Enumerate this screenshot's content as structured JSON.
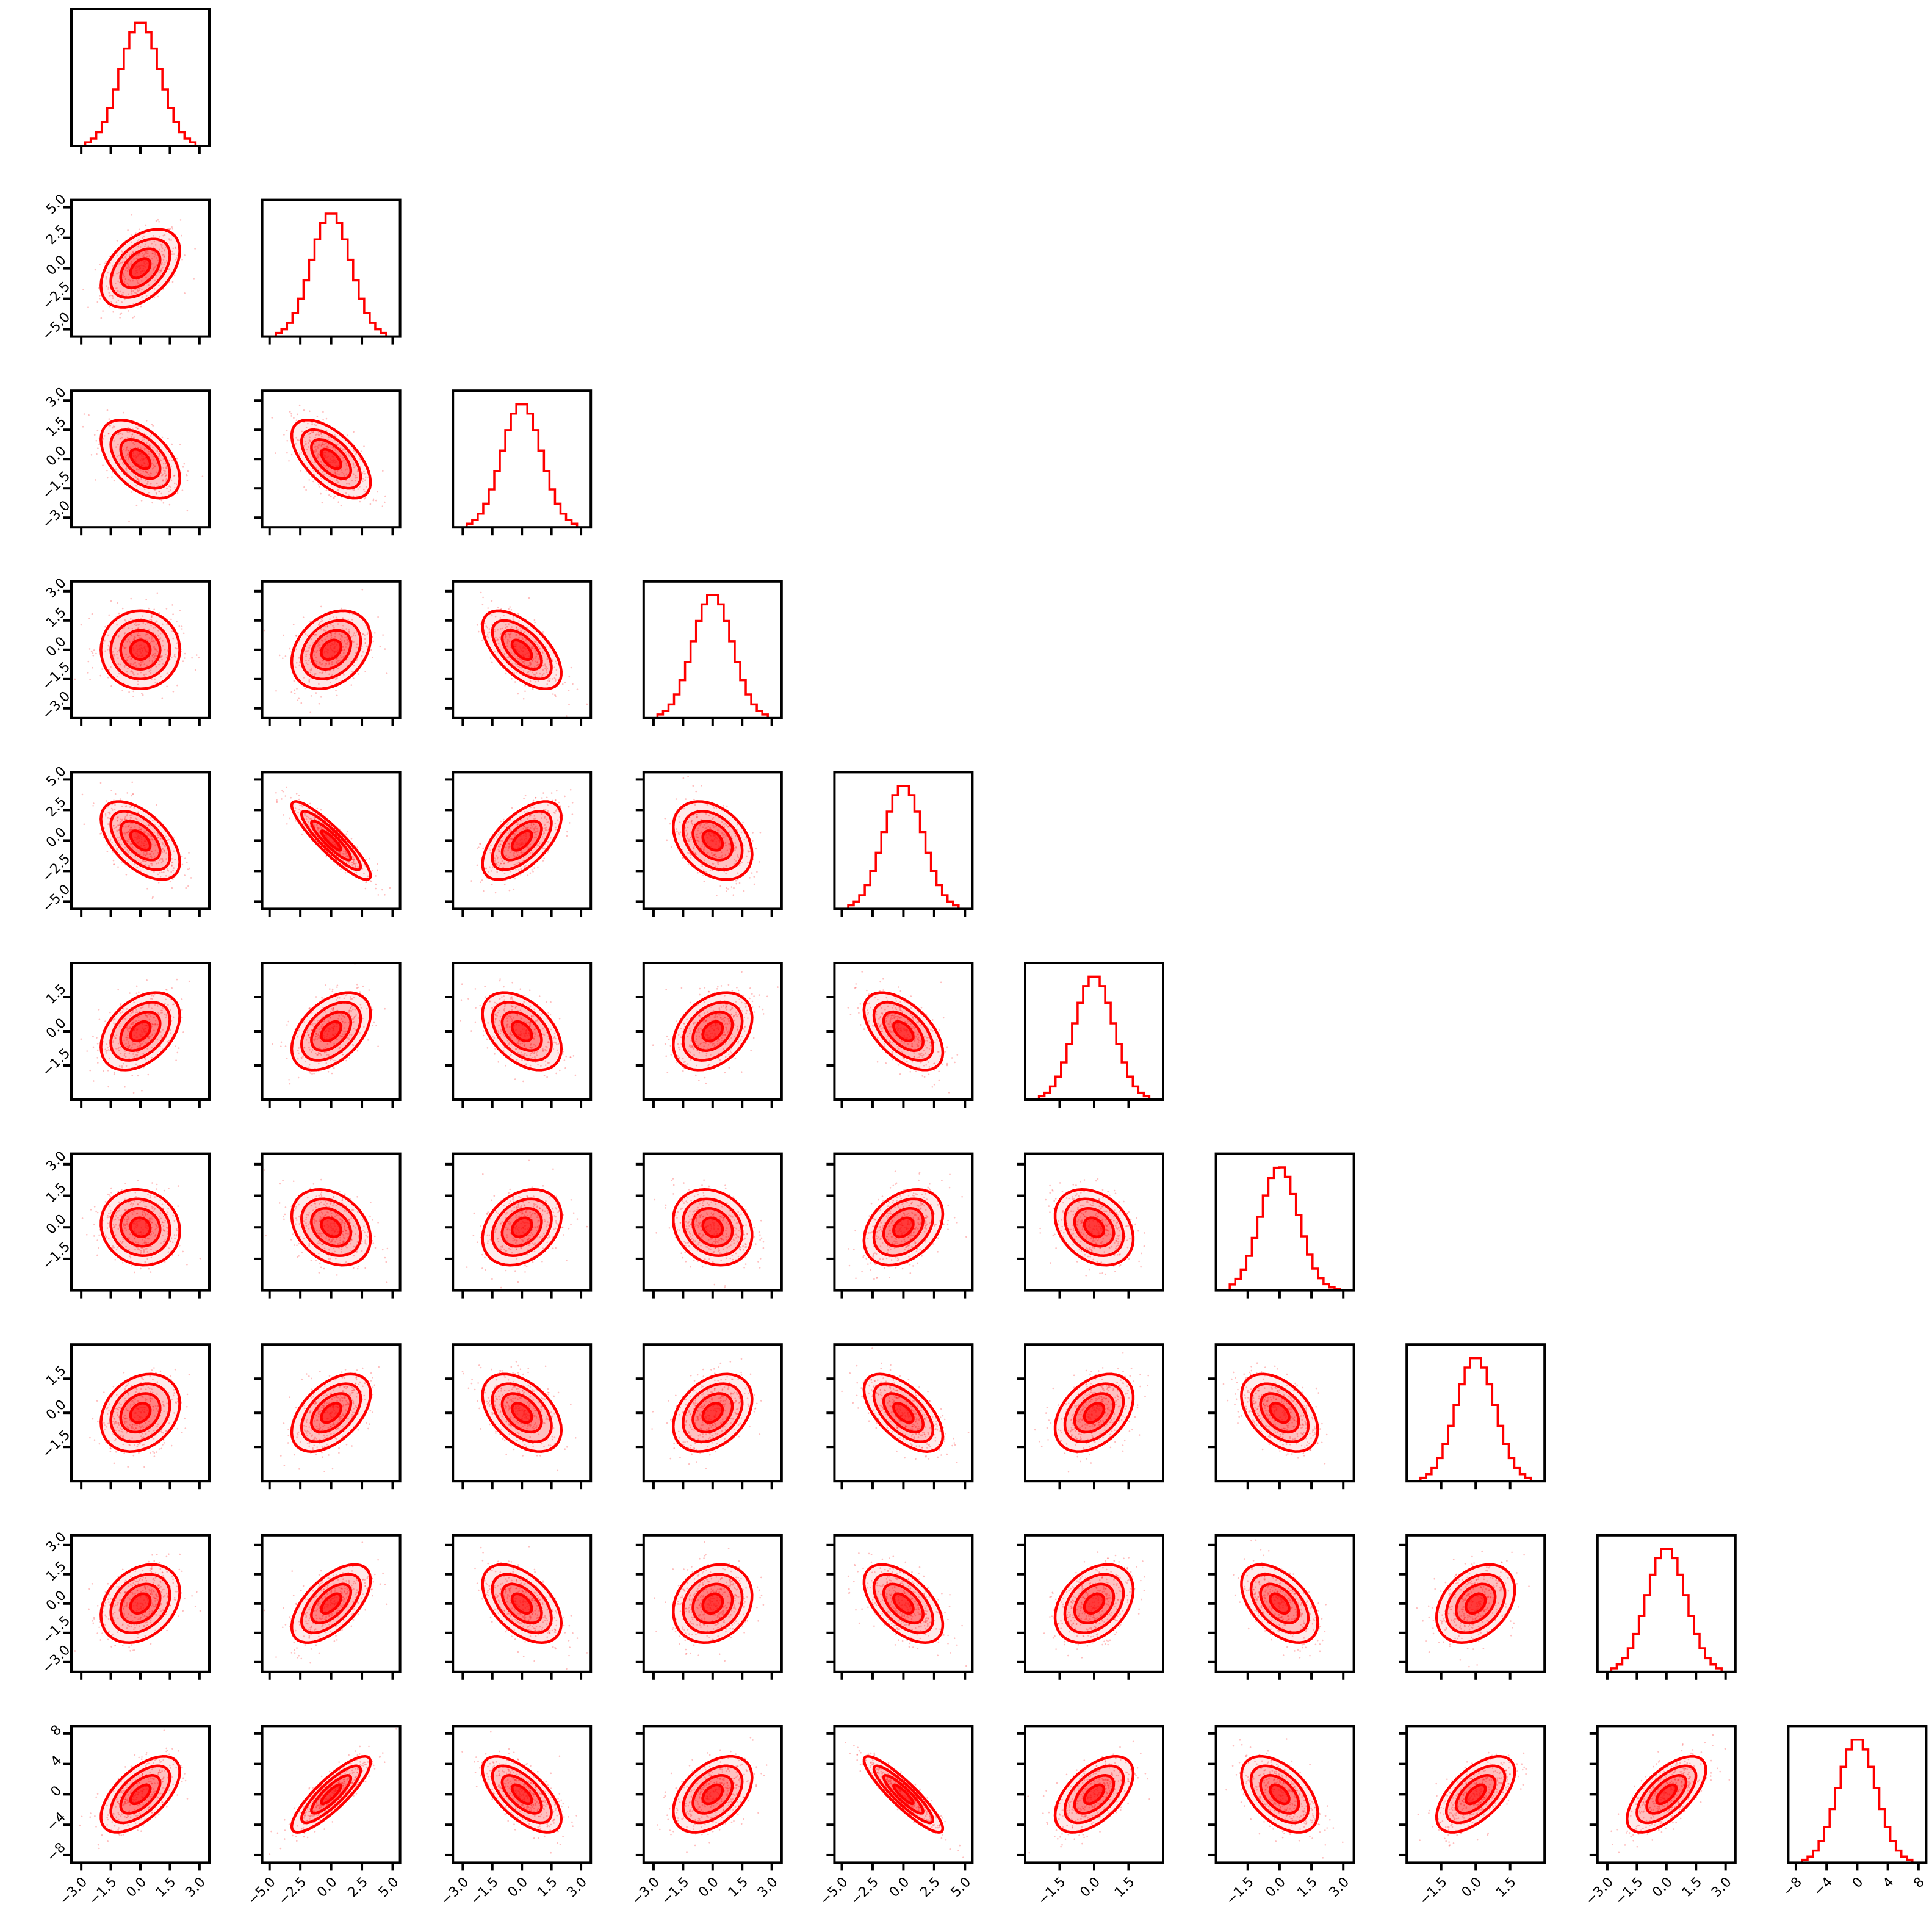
{
  "chart_data": {
    "type": "corner",
    "title": "",
    "dimensions": 10,
    "color": "#ff0000",
    "fill_color": "#ff0000",
    "histogram_bins": 20,
    "contour_levels": 4,
    "variables": [
      {
        "range": [
          -3.5,
          3.5
        ],
        "ticks": [
          -3.0,
          -1.5,
          0.0,
          1.5,
          3.0
        ],
        "tick_labels": [
          "−3.0",
          "−1.5",
          "0.0",
          "1.5",
          "3.0"
        ],
        "sd": 1.0
      },
      {
        "range": [
          -5.6,
          5.6
        ],
        "ticks": [
          -5.0,
          -2.5,
          0.0,
          2.5,
          5.0
        ],
        "tick_labels": [
          "−5.0",
          "−2.5",
          "0.0",
          "2.5",
          "5.0"
        ],
        "sd": 1.6
      },
      {
        "range": [
          -3.5,
          3.5
        ],
        "ticks": [
          -3.0,
          -1.5,
          0.0,
          1.5,
          3.0
        ],
        "tick_labels": [
          "−3.0",
          "−1.5",
          "0.0",
          "1.5",
          "3.0"
        ],
        "sd": 1.0
      },
      {
        "range": [
          -3.5,
          3.5
        ],
        "ticks": [
          -3.0,
          -1.5,
          0.0,
          1.5,
          3.0
        ],
        "tick_labels": [
          "−3.0",
          "−1.5",
          "0.0",
          "1.5",
          "3.0"
        ],
        "sd": 1.0
      },
      {
        "range": [
          -5.6,
          5.6
        ],
        "ticks": [
          -5.0,
          -2.5,
          0.0,
          2.5,
          5.0
        ],
        "tick_labels": [
          "−5.0",
          "−2.5",
          "0.0",
          "2.5",
          "5.0"
        ],
        "sd": 1.6
      },
      {
        "range": [
          -3.0,
          3.0
        ],
        "ticks": [
          -1.5,
          0.0,
          1.5
        ],
        "tick_labels": [
          "−1.5",
          "0.0",
          "1.5"
        ],
        "sd": 0.85
      },
      {
        "range": [
          -3.0,
          3.5
        ],
        "ticks": [
          -1.5,
          0.0,
          1.5,
          3.0
        ],
        "tick_labels": [
          "−1.5",
          "0.0",
          "1.5",
          "3.0"
        ],
        "sd": 0.9
      },
      {
        "range": [
          -3.0,
          3.0
        ],
        "ticks": [
          -1.5,
          0.0,
          1.5
        ],
        "tick_labels": [
          "−1.5",
          "0.0",
          "1.5"
        ],
        "sd": 0.85
      },
      {
        "range": [
          -3.5,
          3.5
        ],
        "ticks": [
          -3.0,
          -1.5,
          0.0,
          1.5,
          3.0
        ],
        "tick_labels": [
          "−3.0",
          "−1.5",
          "0.0",
          "1.5",
          "3.0"
        ],
        "sd": 1.0
      },
      {
        "range": [
          -9.0,
          9.0
        ],
        "ticks": [
          -8,
          -4,
          0,
          4,
          8
        ],
        "tick_labels": [
          "−8",
          "−4",
          "0",
          "4",
          "8"
        ],
        "sd": 2.5
      }
    ],
    "correlations": [
      {
        "i": 1,
        "j": 0,
        "rho": 0.45
      },
      {
        "i": 2,
        "j": 0,
        "rho": -0.5
      },
      {
        "i": 2,
        "j": 1,
        "rho": -0.6
      },
      {
        "i": 3,
        "j": 0,
        "rho": 0.0
      },
      {
        "i": 3,
        "j": 1,
        "rho": 0.3
      },
      {
        "i": 3,
        "j": 2,
        "rho": -0.6
      },
      {
        "i": 4,
        "j": 0,
        "rho": -0.55
      },
      {
        "i": 4,
        "j": 1,
        "rho": -0.9
      },
      {
        "i": 4,
        "j": 2,
        "rho": 0.6
      },
      {
        "i": 4,
        "j": 3,
        "rho": -0.35
      },
      {
        "i": 5,
        "j": 0,
        "rho": 0.4
      },
      {
        "i": 5,
        "j": 1,
        "rho": 0.45
      },
      {
        "i": 5,
        "j": 2,
        "rho": -0.45
      },
      {
        "i": 5,
        "j": 3,
        "rho": 0.35
      },
      {
        "i": 5,
        "j": 4,
        "rho": -0.55
      },
      {
        "i": 6,
        "j": 0,
        "rho": -0.1
      },
      {
        "i": 6,
        "j": 1,
        "rho": -0.3
      },
      {
        "i": 6,
        "j": 2,
        "rho": 0.3
      },
      {
        "i": 6,
        "j": 3,
        "rho": -0.2
      },
      {
        "i": 6,
        "j": 4,
        "rho": 0.35
      },
      {
        "i": 6,
        "j": 5,
        "rho": -0.3
      },
      {
        "i": 7,
        "j": 0,
        "rho": 0.25
      },
      {
        "i": 7,
        "j": 1,
        "rho": 0.5
      },
      {
        "i": 7,
        "j": 2,
        "rho": -0.45
      },
      {
        "i": 7,
        "j": 3,
        "rho": 0.35
      },
      {
        "i": 7,
        "j": 4,
        "rho": -0.6
      },
      {
        "i": 7,
        "j": 5,
        "rho": 0.4
      },
      {
        "i": 7,
        "j": 6,
        "rho": -0.45
      },
      {
        "i": 8,
        "j": 0,
        "rho": 0.3
      },
      {
        "i": 8,
        "j": 1,
        "rho": 0.6
      },
      {
        "i": 8,
        "j": 2,
        "rho": -0.5
      },
      {
        "i": 8,
        "j": 3,
        "rho": 0.2
      },
      {
        "i": 8,
        "j": 4,
        "rho": -0.55
      },
      {
        "i": 8,
        "j": 5,
        "rho": 0.35
      },
      {
        "i": 8,
        "j": 6,
        "rho": -0.5
      },
      {
        "i": 8,
        "j": 7,
        "rho": 0.35
      },
      {
        "i": 9,
        "j": 0,
        "rho": 0.6
      },
      {
        "i": 9,
        "j": 1,
        "rho": 0.85
      },
      {
        "i": 9,
        "j": 2,
        "rho": -0.65
      },
      {
        "i": 9,
        "j": 3,
        "rho": 0.45
      },
      {
        "i": 9,
        "j": 4,
        "rho": -0.9
      },
      {
        "i": 9,
        "j": 5,
        "rho": 0.55
      },
      {
        "i": 9,
        "j": 6,
        "rho": -0.5
      },
      {
        "i": 9,
        "j": 7,
        "rho": 0.6
      },
      {
        "i": 9,
        "j": 8,
        "rho": 0.65
      }
    ]
  }
}
